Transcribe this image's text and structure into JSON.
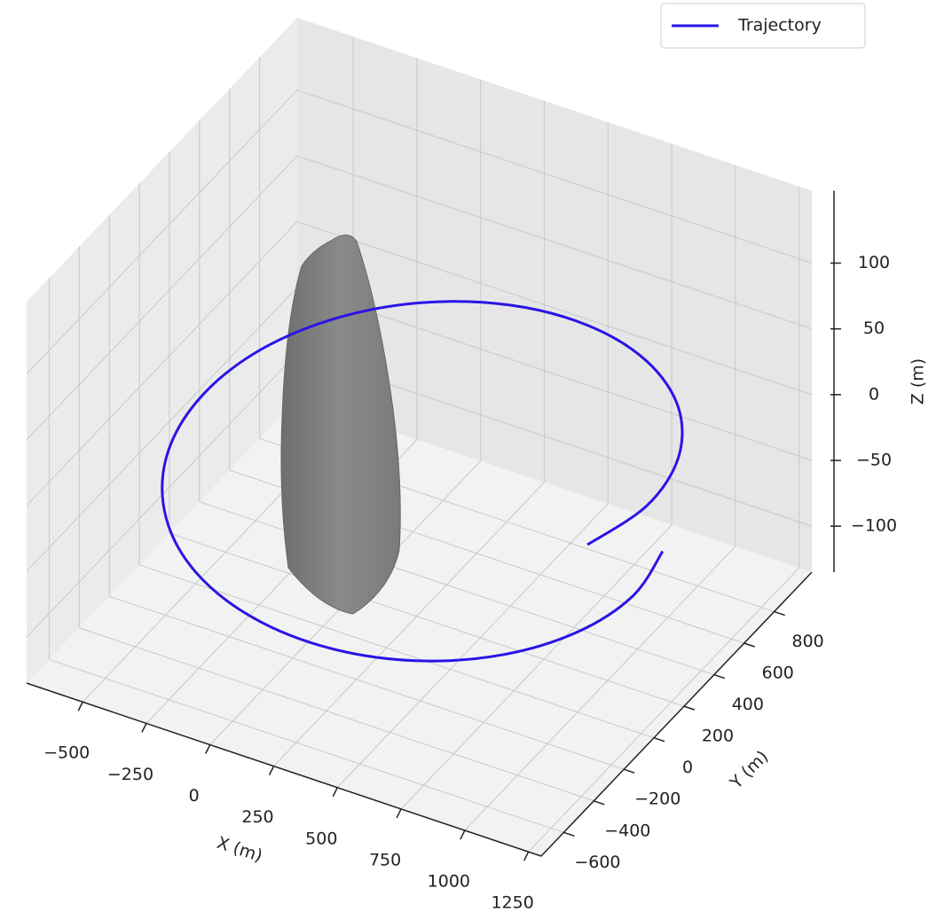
{
  "chart_data": {
    "type": "line3d",
    "xlabel": "X (m)",
    "ylabel": "Y (m)",
    "zlabel": "Z (m)",
    "xlim": [
      -720,
      1300
    ],
    "ylim": [
      -750,
      1050
    ],
    "zlim": [
      -135,
      155
    ],
    "xticks": [
      {
        "value": -500,
        "label": "−500"
      },
      {
        "value": -250,
        "label": "−250"
      },
      0,
      250,
      500,
      750,
      1000,
      1250
    ],
    "yticks": [
      {
        "value": -600,
        "label": "−600"
      },
      {
        "value": -400,
        "label": "−400"
      },
      {
        "value": -200,
        "label": "−200"
      },
      0,
      200,
      400,
      600,
      800
    ],
    "zticks": [
      {
        "value": -100,
        "label": "−100"
      },
      {
        "value": -50,
        "label": "−50"
      },
      0,
      50,
      100
    ],
    "grid": true,
    "legend": "upper right",
    "series": [
      {
        "name": "Trajectory",
        "color": "#2a14e6",
        "x": [
          1133,
          1184,
          1127,
          970,
          731,
          441,
          134,
          -153,
          -384,
          -534,
          -583,
          -528,
          -375,
          -144,
          138,
          436,
          713,
          937,
          1082,
          1130,
          1077
        ],
        "y": [
          -159,
          149,
          455,
          722,
          918,
          1021,
          1018,
          910,
          712,
          448,
          149,
          -148,
          -407,
          -597,
          -696,
          -693,
          -589,
          -397,
          -140,
          149,
          436
        ],
        "z": [
          20,
          16,
          12,
          8,
          4,
          0,
          -4,
          -8,
          -12,
          -16,
          -20,
          -24,
          -28,
          -32,
          -36,
          -40,
          -44,
          -48,
          -52,
          -56,
          -60
        ]
      }
    ]
  }
}
